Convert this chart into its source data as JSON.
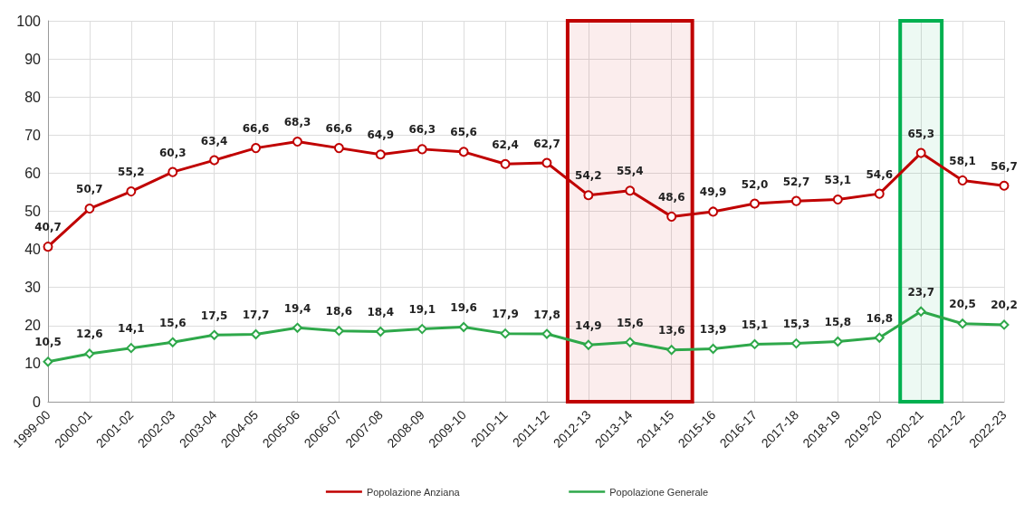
{
  "chart_data": {
    "type": "line",
    "categories": [
      "1999-00",
      "2000-01",
      "2001-02",
      "2002-03",
      "2003-04",
      "2004-05",
      "2005-06",
      "2006-07",
      "2007-08",
      "2008-09",
      "2009-10",
      "2010-11",
      "2011-12",
      "2012-13",
      "2013-14",
      "2014-15",
      "2015-16",
      "2016-17",
      "2017-18",
      "2018-19",
      "2019-20",
      "2020-21",
      "2021-22",
      "2022-23"
    ],
    "series": [
      {
        "name": "Popolazione Anziana",
        "color": "#c00000",
        "marker": "circle",
        "values": [
          40.7,
          50.7,
          55.2,
          60.3,
          63.4,
          66.6,
          68.3,
          66.6,
          64.9,
          66.3,
          65.6,
          62.4,
          62.7,
          54.2,
          55.4,
          48.6,
          49.9,
          52.0,
          52.7,
          53.1,
          54.6,
          65.3,
          58.1,
          56.7
        ],
        "value_labels": [
          "40,7",
          "50,7",
          "55,2",
          "60,3",
          "63,4",
          "66,6",
          "68,3",
          "66,6",
          "64,9",
          "66,3",
          "65,6",
          "62,4",
          "62,7",
          "54,2",
          "55,4",
          "48,6",
          "49,9",
          "52,0",
          "52,7",
          "53,1",
          "54,6",
          "65,3",
          "58,1",
          "56,7"
        ]
      },
      {
        "name": "Popolazione Generale",
        "color": "#2ea84a",
        "marker": "diamond",
        "values": [
          10.5,
          12.6,
          14.1,
          15.6,
          17.5,
          17.7,
          19.4,
          18.6,
          18.4,
          19.1,
          19.6,
          17.9,
          17.8,
          14.9,
          15.6,
          13.6,
          13.9,
          15.1,
          15.3,
          15.8,
          16.8,
          23.7,
          20.5,
          20.2
        ],
        "value_labels": [
          "10,5",
          "12,6",
          "14,1",
          "15,6",
          "17,5",
          "17,7",
          "19,4",
          "18,6",
          "18,4",
          "19,1",
          "19,6",
          "17,9",
          "17,8",
          "14,9",
          "15,6",
          "13,6",
          "13,9",
          "15,1",
          "15,3",
          "15,8",
          "16,8",
          "23,7",
          "20,5",
          "20,2"
        ]
      }
    ],
    "ylim": [
      0,
      100
    ],
    "yticks": [
      0,
      10,
      20,
      30,
      40,
      50,
      60,
      70,
      80,
      90,
      100
    ],
    "grid": true,
    "legend": "bottom",
    "bands": [
      {
        "axis": "x",
        "from": "2012-13",
        "to": "2014-15",
        "color": "#c00000"
      },
      {
        "axis": "x",
        "from": "2020-21",
        "to": "2020-21",
        "color": "#00b050"
      }
    ]
  }
}
